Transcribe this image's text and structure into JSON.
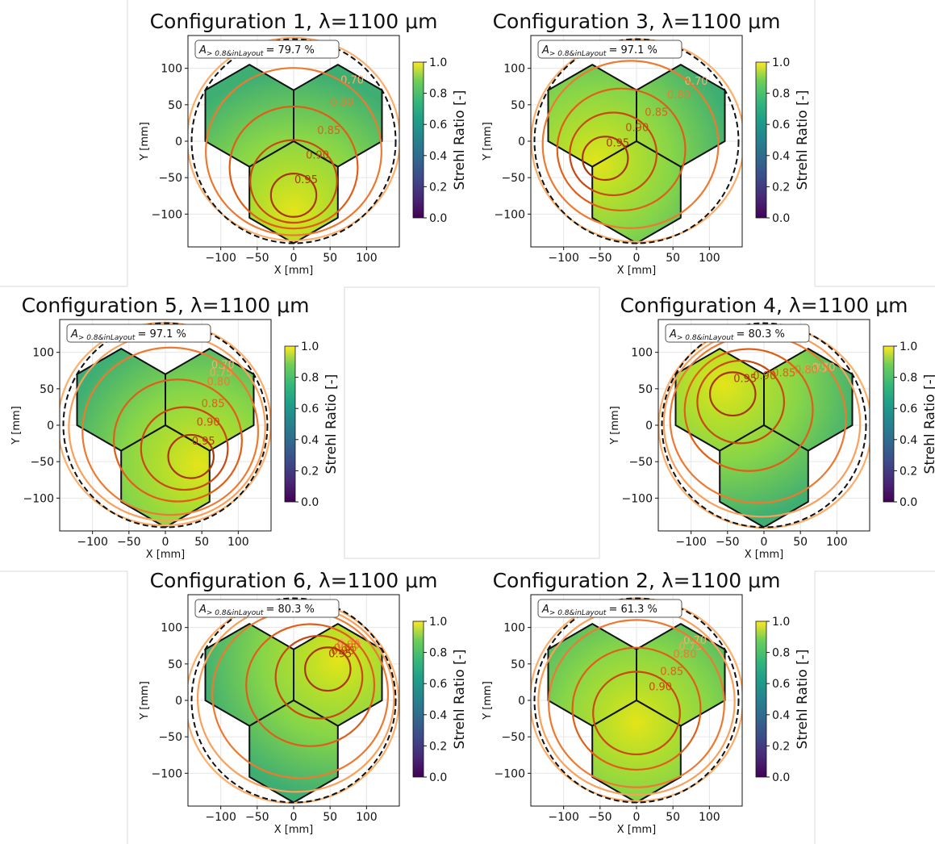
{
  "colors": {
    "contour_0_70": "#fdae6b",
    "contour_0_75": "#f9a05a",
    "contour_0_80": "#ec7a30",
    "contour_0_85": "#e05f18",
    "contour_0_90": "#c84a0e",
    "contour_0_95": "#a8360a",
    "hex_outline": "#111111",
    "aperture_circle": "#111111",
    "panel_border": "#d9d9d9"
  },
  "colorbar": {
    "label": "Strehl Ratio [-]",
    "ticks": [
      "0.0",
      "0.2",
      "0.4",
      "0.6",
      "0.8",
      "1.0"
    ],
    "colormap": "viridis",
    "range": [
      0.0,
      1.0
    ]
  },
  "chart_data": [
    {
      "type": "contour",
      "title": "Configuration 1, λ=1100 μm",
      "xlabel": "X [mm]",
      "ylabel": "Y [mm]",
      "xlim": [
        -145,
        145
      ],
      "ylim": [
        -145,
        145
      ],
      "xticks": [
        "−100",
        "−50",
        "0",
        "50",
        "100"
      ],
      "yticks": [
        "100",
        "50",
        "0",
        "−50",
        "−100"
      ],
      "annotation": {
        "label": "A",
        "subscript": "> 0.8&inLayout",
        "value": "= 79.7 %"
      },
      "peak": [
        0,
        -95
      ],
      "contour_levels": [
        "0.70",
        "0.80",
        "0.85",
        "0.90",
        "0.95"
      ],
      "grid": true
    },
    {
      "type": "contour",
      "title": "Configuration 3, λ=1100 μm",
      "xlabel": "X [mm]",
      "ylabel": "Y [mm]",
      "xlim": [
        -145,
        145
      ],
      "ylim": [
        -145,
        145
      ],
      "xticks": [
        "−100",
        "−50",
        "0",
        "50",
        "100"
      ],
      "yticks": [
        "100",
        "50",
        "0",
        "−50",
        "−100"
      ],
      "annotation": {
        "label": "A",
        "subscript": "> 0.8&inLayout",
        "value": "= 97.1 %"
      },
      "peak": [
        -55,
        -30
      ],
      "contour_levels": [
        "0.70",
        "0.80",
        "0.85",
        "0.90",
        "0.95"
      ],
      "grid": true
    },
    {
      "type": "contour",
      "title": "Configuration 5, λ=1100 μm",
      "xlabel": "X [mm]",
      "ylabel": "Y [mm]",
      "xlim": [
        -145,
        145
      ],
      "ylim": [
        -145,
        145
      ],
      "xticks": [
        "−100",
        "−50",
        "0",
        "50",
        "100"
      ],
      "yticks": [
        "100",
        "50",
        "0",
        "−50",
        "−100"
      ],
      "annotation": {
        "label": "A",
        "subscript": "> 0.8&inLayout",
        "value": "= 97.1 %"
      },
      "peak": [
        45,
        -55
      ],
      "contour_levels": [
        "0.70",
        "0.75",
        "0.80",
        "0.85",
        "0.90",
        "0.95"
      ],
      "grid": true
    },
    {
      "type": "contour",
      "title": "Configuration 4, λ=1100 μm",
      "xlabel": "X [mm]",
      "ylabel": "Y [mm]",
      "xlim": [
        -145,
        145
      ],
      "ylim": [
        -145,
        145
      ],
      "xticks": [
        "−100",
        "−50",
        "0",
        "50",
        "100"
      ],
      "yticks": [
        "100",
        "50",
        "0",
        "−50",
        "−100"
      ],
      "annotation": {
        "label": "A",
        "subscript": "> 0.8&inLayout",
        "value": "= 80.3 %"
      },
      "peak": [
        -55,
        55
      ],
      "contour_levels": [
        "0.70",
        "0.75",
        "0.80",
        "0.85",
        "0.90",
        "0.95"
      ],
      "grid": true
    },
    {
      "type": "contour",
      "title": "Configuration 6, λ=1100 μm",
      "xlabel": "X [mm]",
      "ylabel": "Y [mm]",
      "xlim": [
        -145,
        145
      ],
      "ylim": [
        -145,
        145
      ],
      "xticks": [
        "−100",
        "−50",
        "0",
        "50",
        "100"
      ],
      "yticks": [
        "100",
        "50",
        "0",
        "−50",
        "−100"
      ],
      "annotation": {
        "label": "A",
        "subscript": "> 0.8&inLayout",
        "value": "= 80.3 %"
      },
      "peak": [
        60,
        55
      ],
      "contour_levels": [
        "0.70",
        "0.75",
        "0.80",
        "0.85",
        "0.90",
        "0.95"
      ],
      "grid": true
    },
    {
      "type": "contour",
      "title": "Configuration 2, λ=1100 μm",
      "xlabel": "X [mm]",
      "ylabel": "Y [mm]",
      "xlim": [
        -145,
        145
      ],
      "ylim": [
        -145,
        145
      ],
      "xticks": [
        "−100",
        "−50",
        "0",
        "50",
        "100"
      ],
      "yticks": [
        "100",
        "50",
        "0",
        "−50",
        "−100"
      ],
      "annotation": {
        "label": "A",
        "subscript": "> 0.8&inLayout",
        "value": "= 61.3 %"
      },
      "peak": [
        0,
        -30
      ],
      "contour_levels": [
        "0.70",
        "0.75",
        "0.80",
        "0.85",
        "0.90"
      ],
      "grid": true
    }
  ]
}
